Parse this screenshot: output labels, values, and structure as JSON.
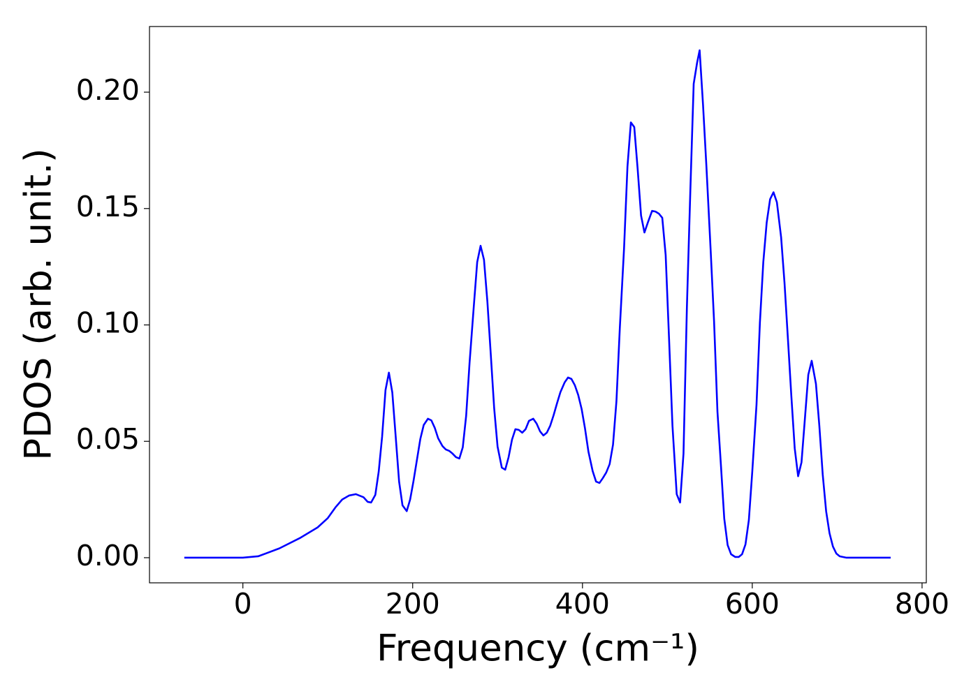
{
  "chart_data": {
    "type": "line",
    "xlabel": "Frequency (cm⁻¹)",
    "ylabel": "PDOS (arb. unit.)",
    "color": "#0000ff",
    "xlim": [
      -110,
      805
    ],
    "ylim": [
      -0.0108,
      0.2282
    ],
    "xticks": [
      0,
      200,
      400,
      600,
      800
    ],
    "yticks": [
      {
        "value": 0,
        "label": "0.00"
      },
      0.05,
      {
        "value": 0.1,
        "label": "0.10"
      },
      0.15,
      {
        "value": 0.2,
        "label": "0.20"
      }
    ],
    "x": [
      -69,
      0,
      18,
      43,
      67,
      88,
      100,
      109,
      117,
      125,
      133,
      142,
      147,
      151,
      156,
      160,
      164,
      168,
      172,
      176,
      180,
      184,
      188,
      193,
      197,
      201,
      205,
      209,
      213,
      218,
      222,
      226,
      230,
      235,
      239,
      243,
      247,
      251,
      255,
      259,
      263,
      267,
      272,
      276,
      280,
      284,
      288,
      292,
      296,
      300,
      305,
      309,
      313,
      317,
      321,
      325,
      329,
      333,
      337,
      342,
      346,
      350,
      354,
      358,
      362,
      366,
      370,
      374,
      379,
      383,
      387,
      391,
      395,
      399,
      403,
      407,
      412,
      416,
      420,
      424,
      428,
      432,
      436,
      440,
      444,
      449,
      453,
      457,
      461,
      465,
      469,
      473,
      477,
      482,
      486,
      490,
      494,
      498,
      502,
      506,
      511,
      515,
      519,
      523,
      527,
      531,
      535,
      538,
      542,
      546,
      551,
      555,
      559,
      563,
      567,
      571,
      575,
      580,
      584,
      588,
      592,
      596,
      600,
      605,
      609,
      613,
      617,
      621,
      625,
      629,
      634,
      638,
      642,
      646,
      650,
      654,
      658,
      662,
      666,
      670,
      675,
      679,
      683,
      687,
      691,
      695,
      699,
      703,
      711,
      763
    ],
    "values": [
      0,
      0,
      0.0006,
      0.004,
      0.0084,
      0.013,
      0.017,
      0.0216,
      0.025,
      0.0267,
      0.0273,
      0.026,
      0.024,
      0.0237,
      0.027,
      0.037,
      0.052,
      0.072,
      0.0795,
      0.071,
      0.052,
      0.0327,
      0.0225,
      0.02,
      0.025,
      0.033,
      0.042,
      0.051,
      0.057,
      0.0597,
      0.059,
      0.0558,
      0.0513,
      0.048,
      0.0465,
      0.0459,
      0.0447,
      0.0432,
      0.0426,
      0.0474,
      0.061,
      0.0837,
      0.108,
      0.127,
      0.134,
      0.128,
      0.11,
      0.0873,
      0.0642,
      0.0477,
      0.0387,
      0.0378,
      0.0432,
      0.0507,
      0.0552,
      0.0549,
      0.0537,
      0.0552,
      0.0588,
      0.0597,
      0.0576,
      0.0543,
      0.0525,
      0.0537,
      0.0567,
      0.0612,
      0.0663,
      0.0711,
      0.0753,
      0.0774,
      0.0768,
      0.0741,
      0.0699,
      0.0639,
      0.0555,
      0.0456,
      0.0372,
      0.0327,
      0.0321,
      0.0342,
      0.0366,
      0.0402,
      0.0486,
      0.0672,
      0.0987,
      0.133,
      0.168,
      0.187,
      0.185,
      0.167,
      0.147,
      0.1397,
      0.144,
      0.149,
      0.1487,
      0.1478,
      0.146,
      0.13,
      0.094,
      0.0567,
      0.0273,
      0.0237,
      0.0447,
      0.1076,
      0.157,
      0.2036,
      0.2126,
      0.218,
      0.1946,
      0.168,
      0.132,
      0.1016,
      0.0627,
      0.0402,
      0.0168,
      0.0054,
      0.0015,
      0.0003,
      0.0003,
      0.0015,
      0.0057,
      0.0162,
      0.0369,
      0.0657,
      0.101,
      0.127,
      0.144,
      0.154,
      0.157,
      0.1527,
      0.1376,
      0.118,
      0.094,
      0.0696,
      0.047,
      0.035,
      0.041,
      0.0597,
      0.0786,
      0.0846,
      0.0747,
      0.0567,
      0.0357,
      0.02,
      0.0105,
      0.0048,
      0.0018,
      0.0006,
      0,
      0
    ]
  }
}
